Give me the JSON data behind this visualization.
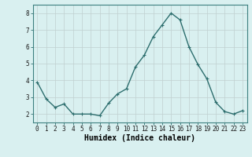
{
  "x": [
    0,
    1,
    2,
    3,
    4,
    5,
    6,
    7,
    8,
    9,
    10,
    11,
    12,
    13,
    14,
    15,
    16,
    17,
    18,
    19,
    20,
    21,
    22,
    23
  ],
  "y": [
    3.9,
    2.9,
    2.4,
    2.6,
    2.0,
    2.0,
    2.0,
    1.9,
    2.65,
    3.2,
    3.5,
    4.8,
    5.5,
    6.6,
    7.3,
    8.0,
    7.6,
    6.0,
    4.95,
    4.1,
    2.7,
    2.15,
    2.0,
    2.2
  ],
  "line_color": "#2d6e6e",
  "marker": "+",
  "marker_size": 3,
  "bg_color": "#d9f0f0",
  "grid_color": "#c0d0d0",
  "grid_color_major": "#b8cccc",
  "xlabel": "Humidex (Indice chaleur)",
  "ylim": [
    1.5,
    8.5
  ],
  "xlim": [
    -0.5,
    23.5
  ],
  "yticks": [
    2,
    3,
    4,
    5,
    6,
    7,
    8
  ],
  "xticks": [
    0,
    1,
    2,
    3,
    4,
    5,
    6,
    7,
    8,
    9,
    10,
    11,
    12,
    13,
    14,
    15,
    16,
    17,
    18,
    19,
    20,
    21,
    22,
    23
  ],
  "tick_fontsize": 5.5,
  "xlabel_fontsize": 7,
  "line_width": 1.0,
  "marker_ew": 0.8
}
